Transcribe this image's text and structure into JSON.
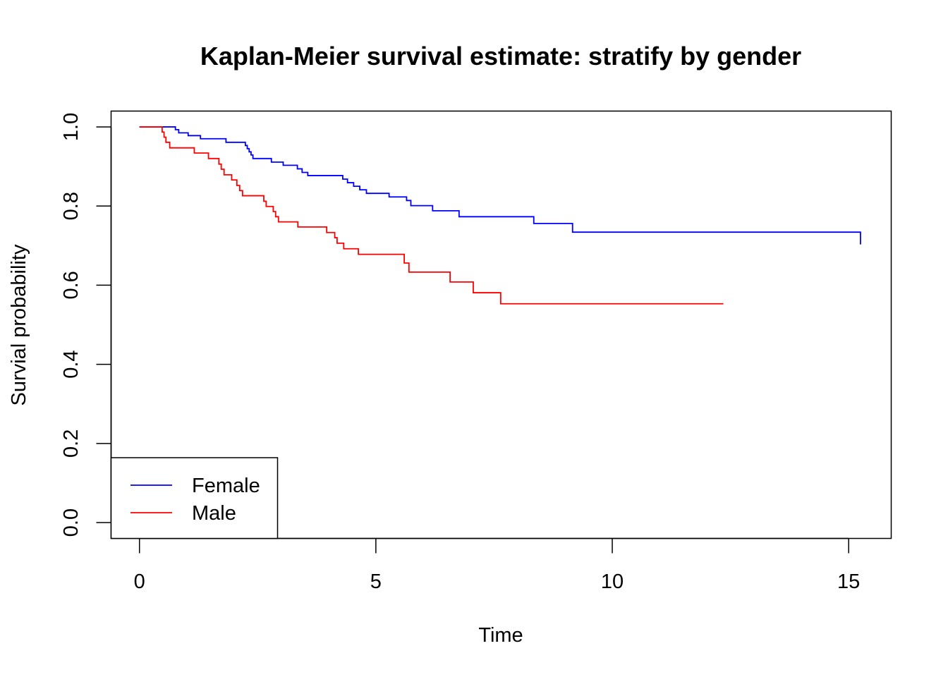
{
  "chart_data": {
    "type": "line",
    "step": true,
    "title": "Kaplan-Meier survival estimate: stratify by gender",
    "xlabel": "Time",
    "ylabel": "Survial probability",
    "xlim": [
      -0.6,
      15.9
    ],
    "ylim": [
      -0.04,
      1.04
    ],
    "xticks": [
      0,
      5,
      10,
      15
    ],
    "xtick_labels": [
      "0",
      "5",
      "10",
      "15"
    ],
    "yticks": [
      0.0,
      0.2,
      0.4,
      0.6,
      0.8,
      1.0
    ],
    "ytick_labels": [
      "0.0",
      "0.2",
      "0.4",
      "0.6",
      "0.8",
      "1.0"
    ],
    "grid": false,
    "legend_position": "bottom-left",
    "series": [
      {
        "name": "Female",
        "color": "#0000ff",
        "x": [
          0,
          0.76,
          0.83,
          1.03,
          1.29,
          1.83,
          2.24,
          2.28,
          2.32,
          2.36,
          2.4,
          2.79,
          3.04,
          3.34,
          3.44,
          3.56,
          4.3,
          4.4,
          4.53,
          4.66,
          4.8,
          5.28,
          5.65,
          5.74,
          6.2,
          6.76,
          8.34,
          9.16,
          15.25
        ],
        "y": [
          1.0,
          0.993,
          0.985,
          0.978,
          0.97,
          0.961,
          0.953,
          0.945,
          0.937,
          0.929,
          0.92,
          0.911,
          0.903,
          0.894,
          0.885,
          0.877,
          0.868,
          0.859,
          0.85,
          0.841,
          0.832,
          0.823,
          0.814,
          0.801,
          0.788,
          0.773,
          0.756,
          0.734,
          0.703
        ]
      },
      {
        "name": "Male",
        "color": "#ff0000",
        "x": [
          0,
          0.48,
          0.52,
          0.56,
          0.64,
          1.16,
          1.46,
          1.68,
          1.73,
          1.79,
          1.95,
          2.06,
          2.12,
          2.18,
          2.63,
          2.68,
          2.83,
          2.88,
          2.94,
          3.35,
          3.96,
          4.13,
          4.18,
          4.32,
          4.63,
          5.6,
          5.7,
          6.57,
          7.06,
          7.64,
          12.35
        ],
        "y": [
          1.0,
          0.987,
          0.974,
          0.961,
          0.947,
          0.934,
          0.92,
          0.906,
          0.893,
          0.879,
          0.866,
          0.852,
          0.839,
          0.826,
          0.812,
          0.799,
          0.786,
          0.773,
          0.76,
          0.747,
          0.733,
          0.72,
          0.706,
          0.692,
          0.678,
          0.656,
          0.633,
          0.608,
          0.581,
          0.553,
          0.553
        ]
      }
    ]
  }
}
